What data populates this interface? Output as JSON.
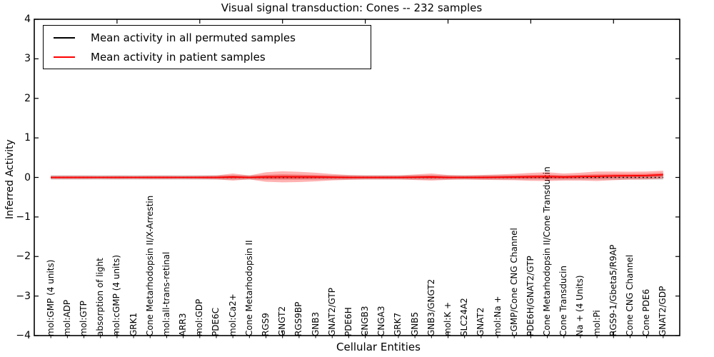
{
  "chart_data": {
    "type": "line",
    "title": "Visual signal transduction: Cones -- 232 samples",
    "xlabel": "Cellular Entities",
    "ylabel": "Inferred Activity",
    "ylim": [
      -4,
      4
    ],
    "xlim": [
      0,
      39
    ],
    "yticks": [
      -4,
      -3,
      -2,
      -1,
      0,
      1,
      2,
      3,
      4
    ],
    "xticks_major_positions": [
      5,
      10,
      15,
      20,
      25,
      30,
      35
    ],
    "grid": false,
    "legend_position": "upper left",
    "categories": [
      "mol:GMP (4 units)",
      "mol:ADP",
      "mol:GTP",
      "absorption of light",
      "mol:cGMP (4 units)",
      "GRK1",
      "Cone Metarhodopsin II/X-Arrestin",
      "mol:all-trans-retinal",
      "ARR3",
      "mol:GDP",
      "PDE6C",
      "mol:Ca2+",
      "Cone Metarhodopsin II",
      "RGS9",
      "GNGT2",
      "RGS9BP",
      "GNB3",
      "GNAT2/GTP",
      "PDE6H",
      "CNGB3",
      "CNGA3",
      "GRK7",
      "GNB5",
      "GNB3/GNGT2",
      "mol:K +",
      "SLC24A2",
      "GNAT2",
      "mol:Na +",
      "cGMP/Cone CNG Channel",
      "PDE6H/GNAT2/GTP",
      "Cone Metarhodopsin II/Cone Transducin",
      "Cone Transducin",
      "Na + (4 Units)",
      "mol:Pi",
      "RGS9-1/Gbeta5/R9AP",
      "Cone CNG Channel",
      "Cone PDE6",
      "GNAT2/GDP"
    ],
    "series": [
      {
        "name": "Mean activity in all permuted samples",
        "color": "#000000",
        "line_style": "dotted",
        "values": [
          0,
          0,
          0,
          0,
          0,
          0,
          0,
          0,
          0,
          0,
          0,
          0,
          0,
          0,
          0,
          0,
          0,
          0,
          0,
          0,
          0,
          0,
          0,
          0,
          0,
          0,
          0,
          0,
          0,
          0,
          0,
          0,
          0,
          0,
          0,
          0,
          0,
          0
        ],
        "band_halfwidth": 0.055,
        "band_color": "#808080",
        "band_alpha": 0.35
      },
      {
        "name": "Mean activity in patient samples",
        "color": "#ff0000",
        "line_style": "solid",
        "values": [
          0,
          0,
          0,
          0,
          0,
          0,
          0,
          0,
          0,
          0,
          0,
          0.01,
          0,
          0.01,
          0.015,
          0.012,
          0.01,
          0.005,
          0,
          0,
          0,
          0,
          0.005,
          0.01,
          0,
          0,
          0,
          0.005,
          0.01,
          0.015,
          0.02,
          0.01,
          0.02,
          0.03,
          0.04,
          0.045,
          0.05,
          0.07
        ],
        "band_halfwidths": [
          0.04,
          0.04,
          0.04,
          0.035,
          0.04,
          0.035,
          0.04,
          0.04,
          0.035,
          0.04,
          0.05,
          0.09,
          0.05,
          0.12,
          0.14,
          0.13,
          0.11,
          0.08,
          0.06,
          0.05,
          0.05,
          0.05,
          0.07,
          0.09,
          0.06,
          0.05,
          0.06,
          0.07,
          0.08,
          0.1,
          0.11,
          0.09,
          0.1,
          0.12,
          0.11,
          0.1,
          0.1,
          0.1
        ],
        "band_color": "#ff0000",
        "band_alpha": 0.3
      }
    ]
  },
  "colors": {
    "background": "#ffffff",
    "axis": "#000000",
    "text": "#000000"
  }
}
